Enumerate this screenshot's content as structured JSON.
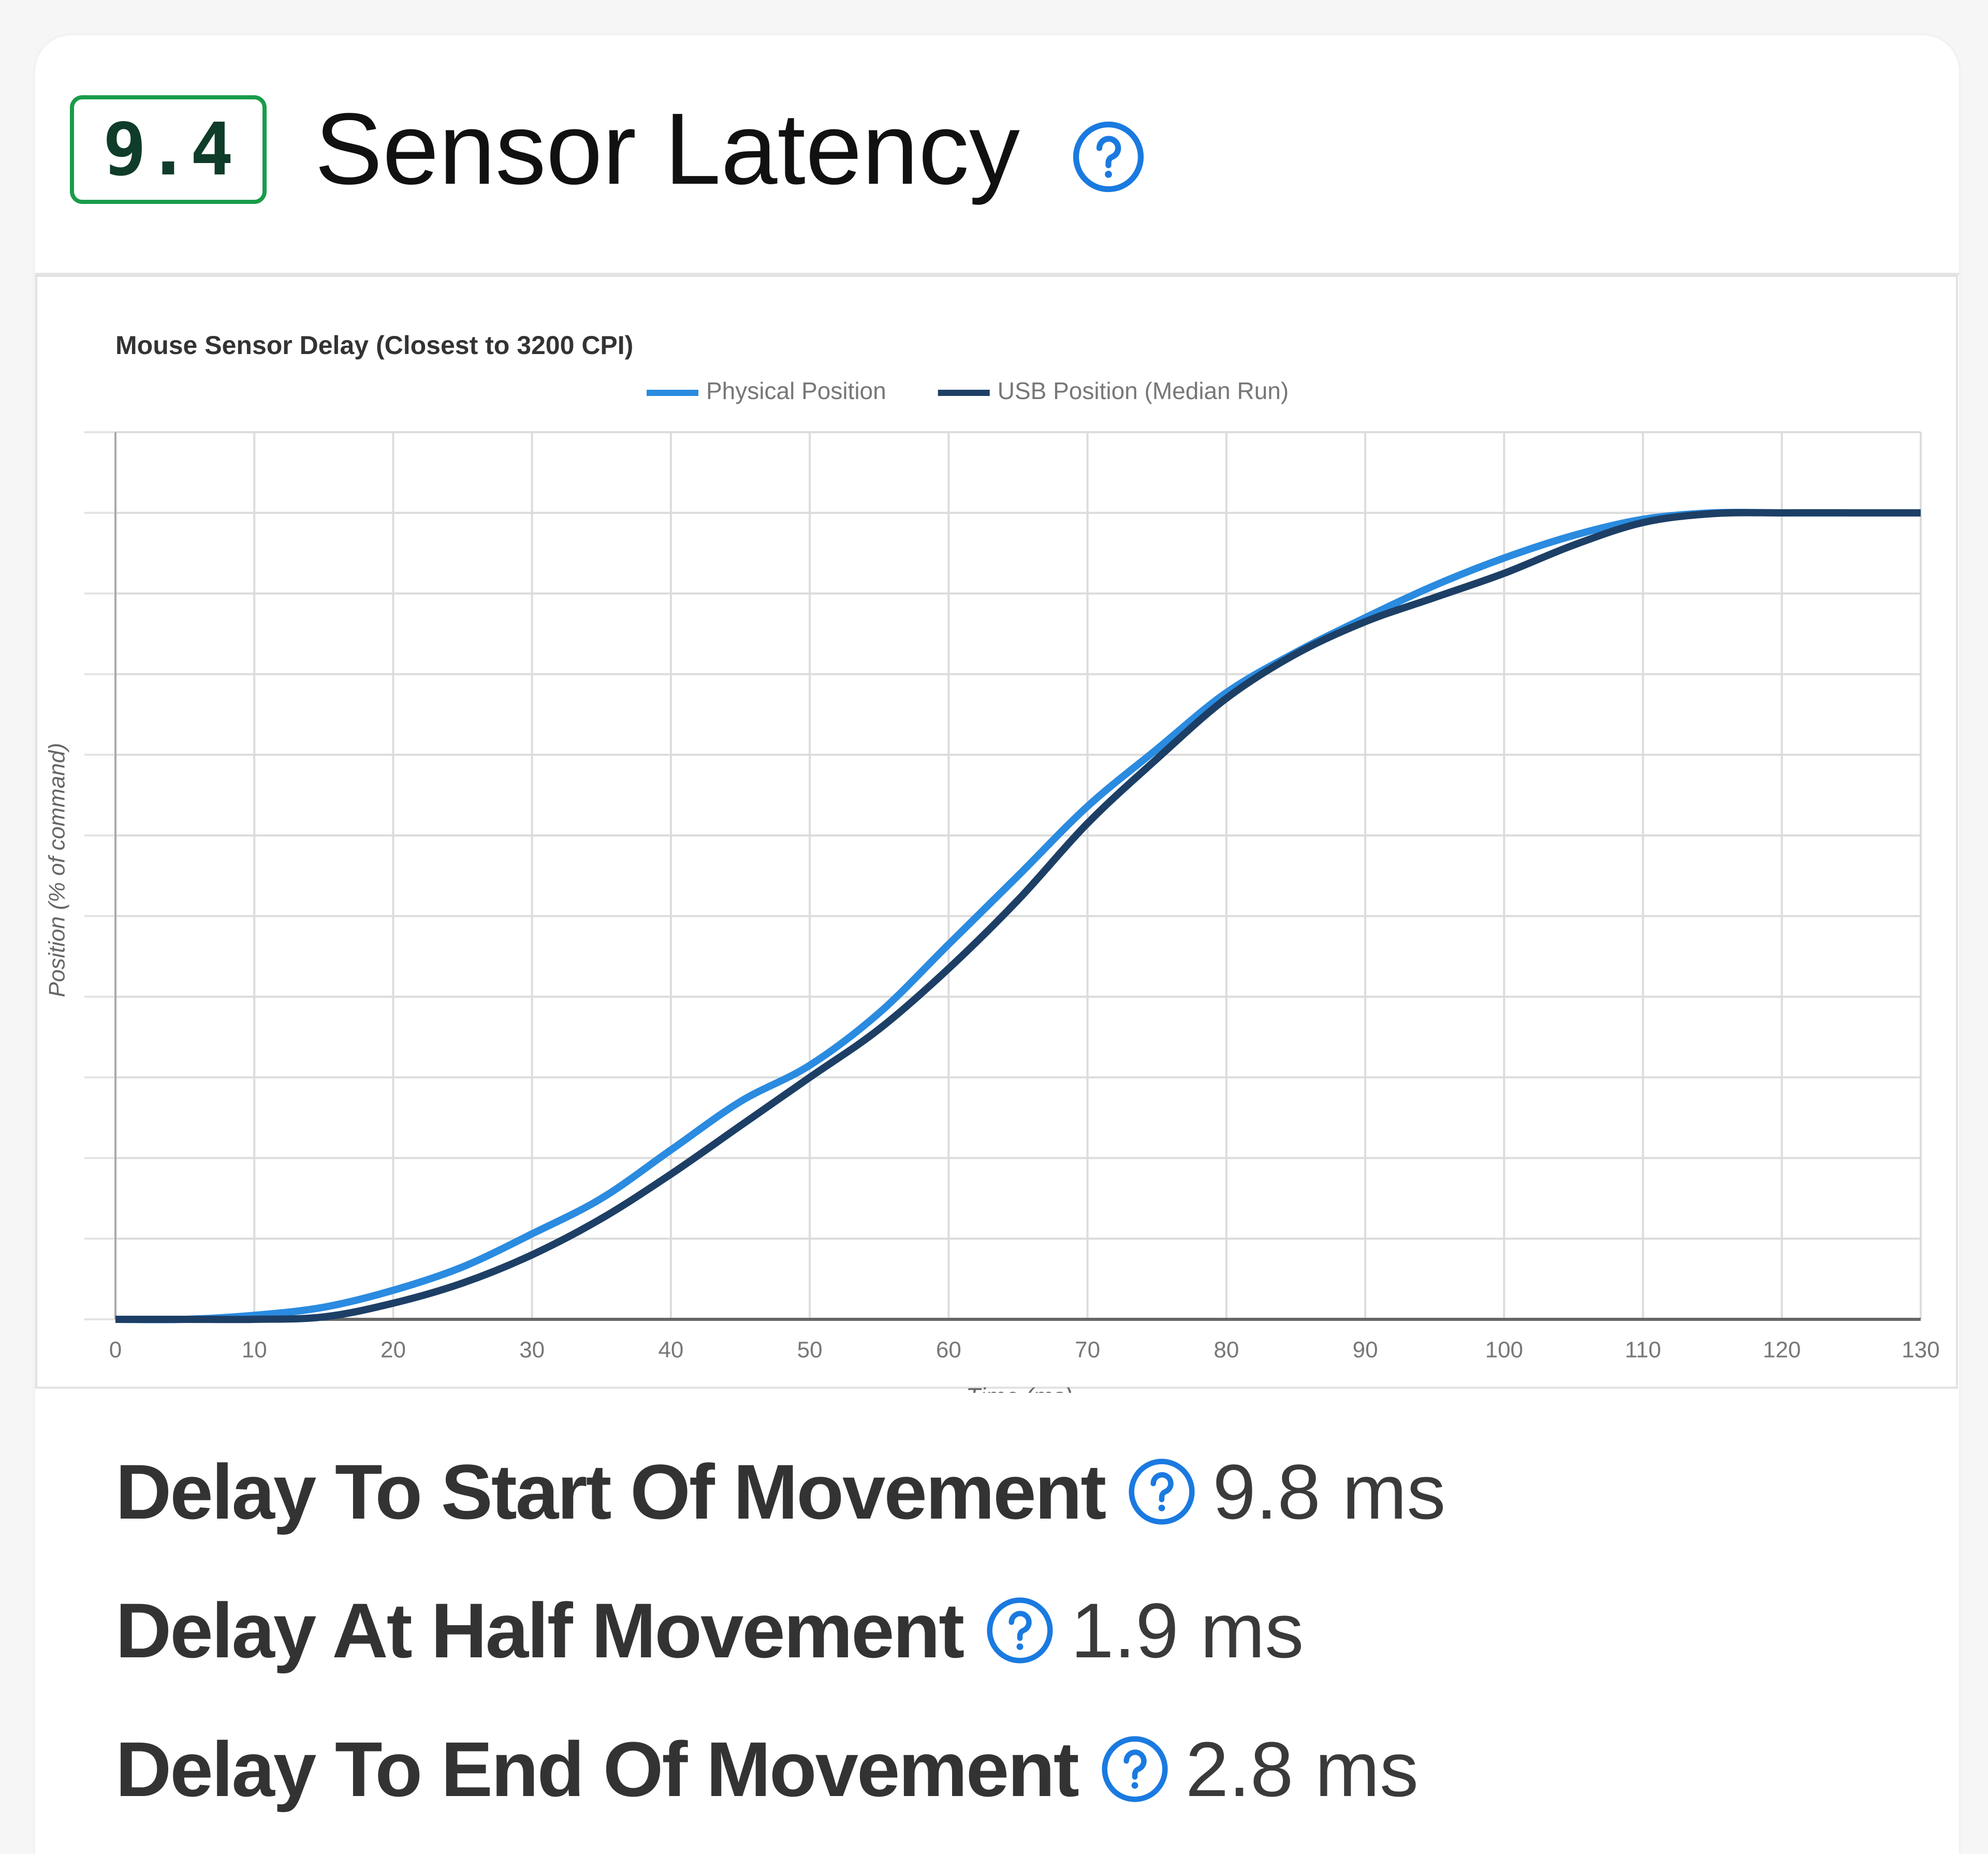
{
  "header": {
    "score": "9.4",
    "title": "Sensor Latency"
  },
  "chart_data": {
    "type": "line",
    "title": "Mouse Sensor Delay (Closest to 3200 CPI)",
    "x_label": "Time (ms)",
    "y_label": "Position (% of command)",
    "x": [
      0,
      5,
      10,
      15,
      20,
      25,
      30,
      35,
      40,
      45,
      50,
      55,
      60,
      65,
      70,
      75,
      80,
      85,
      90,
      95,
      100,
      105,
      110,
      115,
      120,
      125,
      130
    ],
    "series": [
      {
        "name": "Physical Position",
        "color": "#2a8be0",
        "values": [
          0,
          0,
          0.5,
          1.5,
          3.6,
          6.5,
          10.6,
          15,
          21,
          27,
          31.5,
          38,
          46.5,
          55,
          63.6,
          70.7,
          77.7,
          82.7,
          87,
          91,
          94.4,
          97.2,
          99.2,
          100,
          100,
          100,
          100
        ]
      },
      {
        "name": "USB Position (Median Run)",
        "color": "#1d3f66",
        "values": [
          0,
          0,
          0,
          0.3,
          2,
          4.5,
          8,
          12.5,
          18,
          24,
          30,
          36,
          43.5,
          52,
          61.5,
          69.5,
          77,
          82.5,
          86.5,
          89.5,
          92.5,
          96,
          98.8,
          99.9,
          100,
          100,
          100
        ]
      }
    ],
    "xlim": [
      0,
      130
    ],
    "xticks": [
      0,
      10,
      20,
      30,
      40,
      50,
      60,
      70,
      80,
      90,
      100,
      110,
      120,
      130
    ],
    "ylim": [
      0,
      110
    ],
    "yticks": [
      0,
      10,
      20,
      30,
      40,
      50,
      60,
      70,
      80,
      90,
      100,
      110
    ],
    "grid": true,
    "legend": "top"
  },
  "metrics": [
    {
      "label": "Delay To Start Of Movement",
      "value": "9.8 ms"
    },
    {
      "label": "Delay At Half Movement",
      "value": "1.9 ms"
    },
    {
      "label": "Delay To End Of Movement",
      "value": "2.8 ms"
    }
  ]
}
